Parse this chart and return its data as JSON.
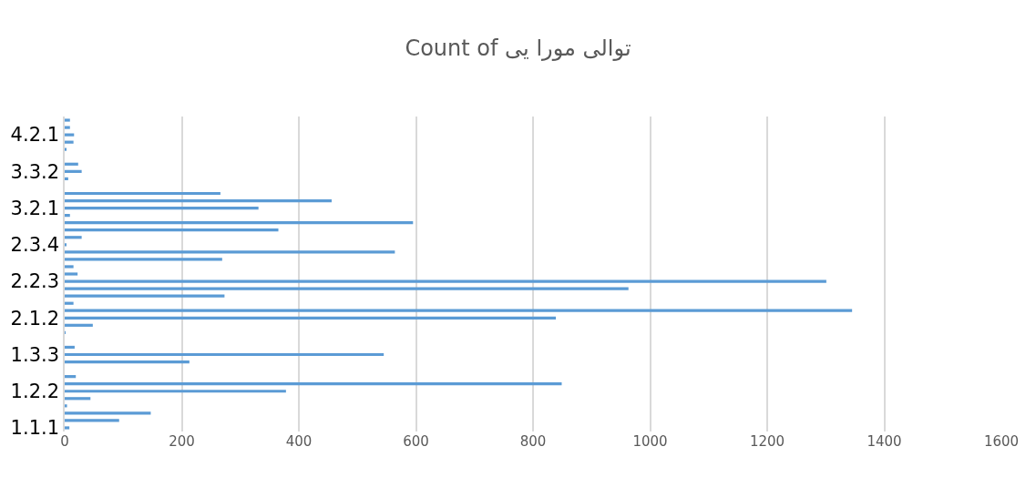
{
  "chart_data": {
    "type": "bar",
    "orientation": "horizontal",
    "title": "Count of توالی مورا یی",
    "categories": [
      null,
      null,
      "4.2.1",
      null,
      null,
      null,
      null,
      "3.3.2",
      null,
      null,
      null,
      null,
      "3.2.1",
      null,
      null,
      null,
      null,
      "2.3.4",
      null,
      null,
      null,
      null,
      "2.2.3",
      null,
      null,
      null,
      null,
      "2.1.2",
      null,
      null,
      null,
      null,
      "1.3.3",
      null,
      null,
      null,
      null,
      "1.2.2",
      null,
      null,
      null,
      null,
      "1.1.1"
    ],
    "values": [
      9,
      9,
      16,
      15,
      2,
      0,
      23,
      29,
      6,
      0,
      266,
      456,
      331,
      9,
      595,
      365,
      29,
      3,
      564,
      269,
      15,
      22,
      1301,
      963,
      273,
      15,
      1345,
      839,
      48,
      1,
      0,
      17,
      545,
      213,
      0,
      19,
      849,
      378,
      44,
      4,
      147,
      93,
      8
    ],
    "color": "#5b9bd5",
    "xlim": [
      0,
      1600
    ],
    "xticks": [
      0,
      200,
      400,
      600,
      800,
      1000,
      1200,
      1400,
      1600
    ],
    "grid": "x"
  }
}
